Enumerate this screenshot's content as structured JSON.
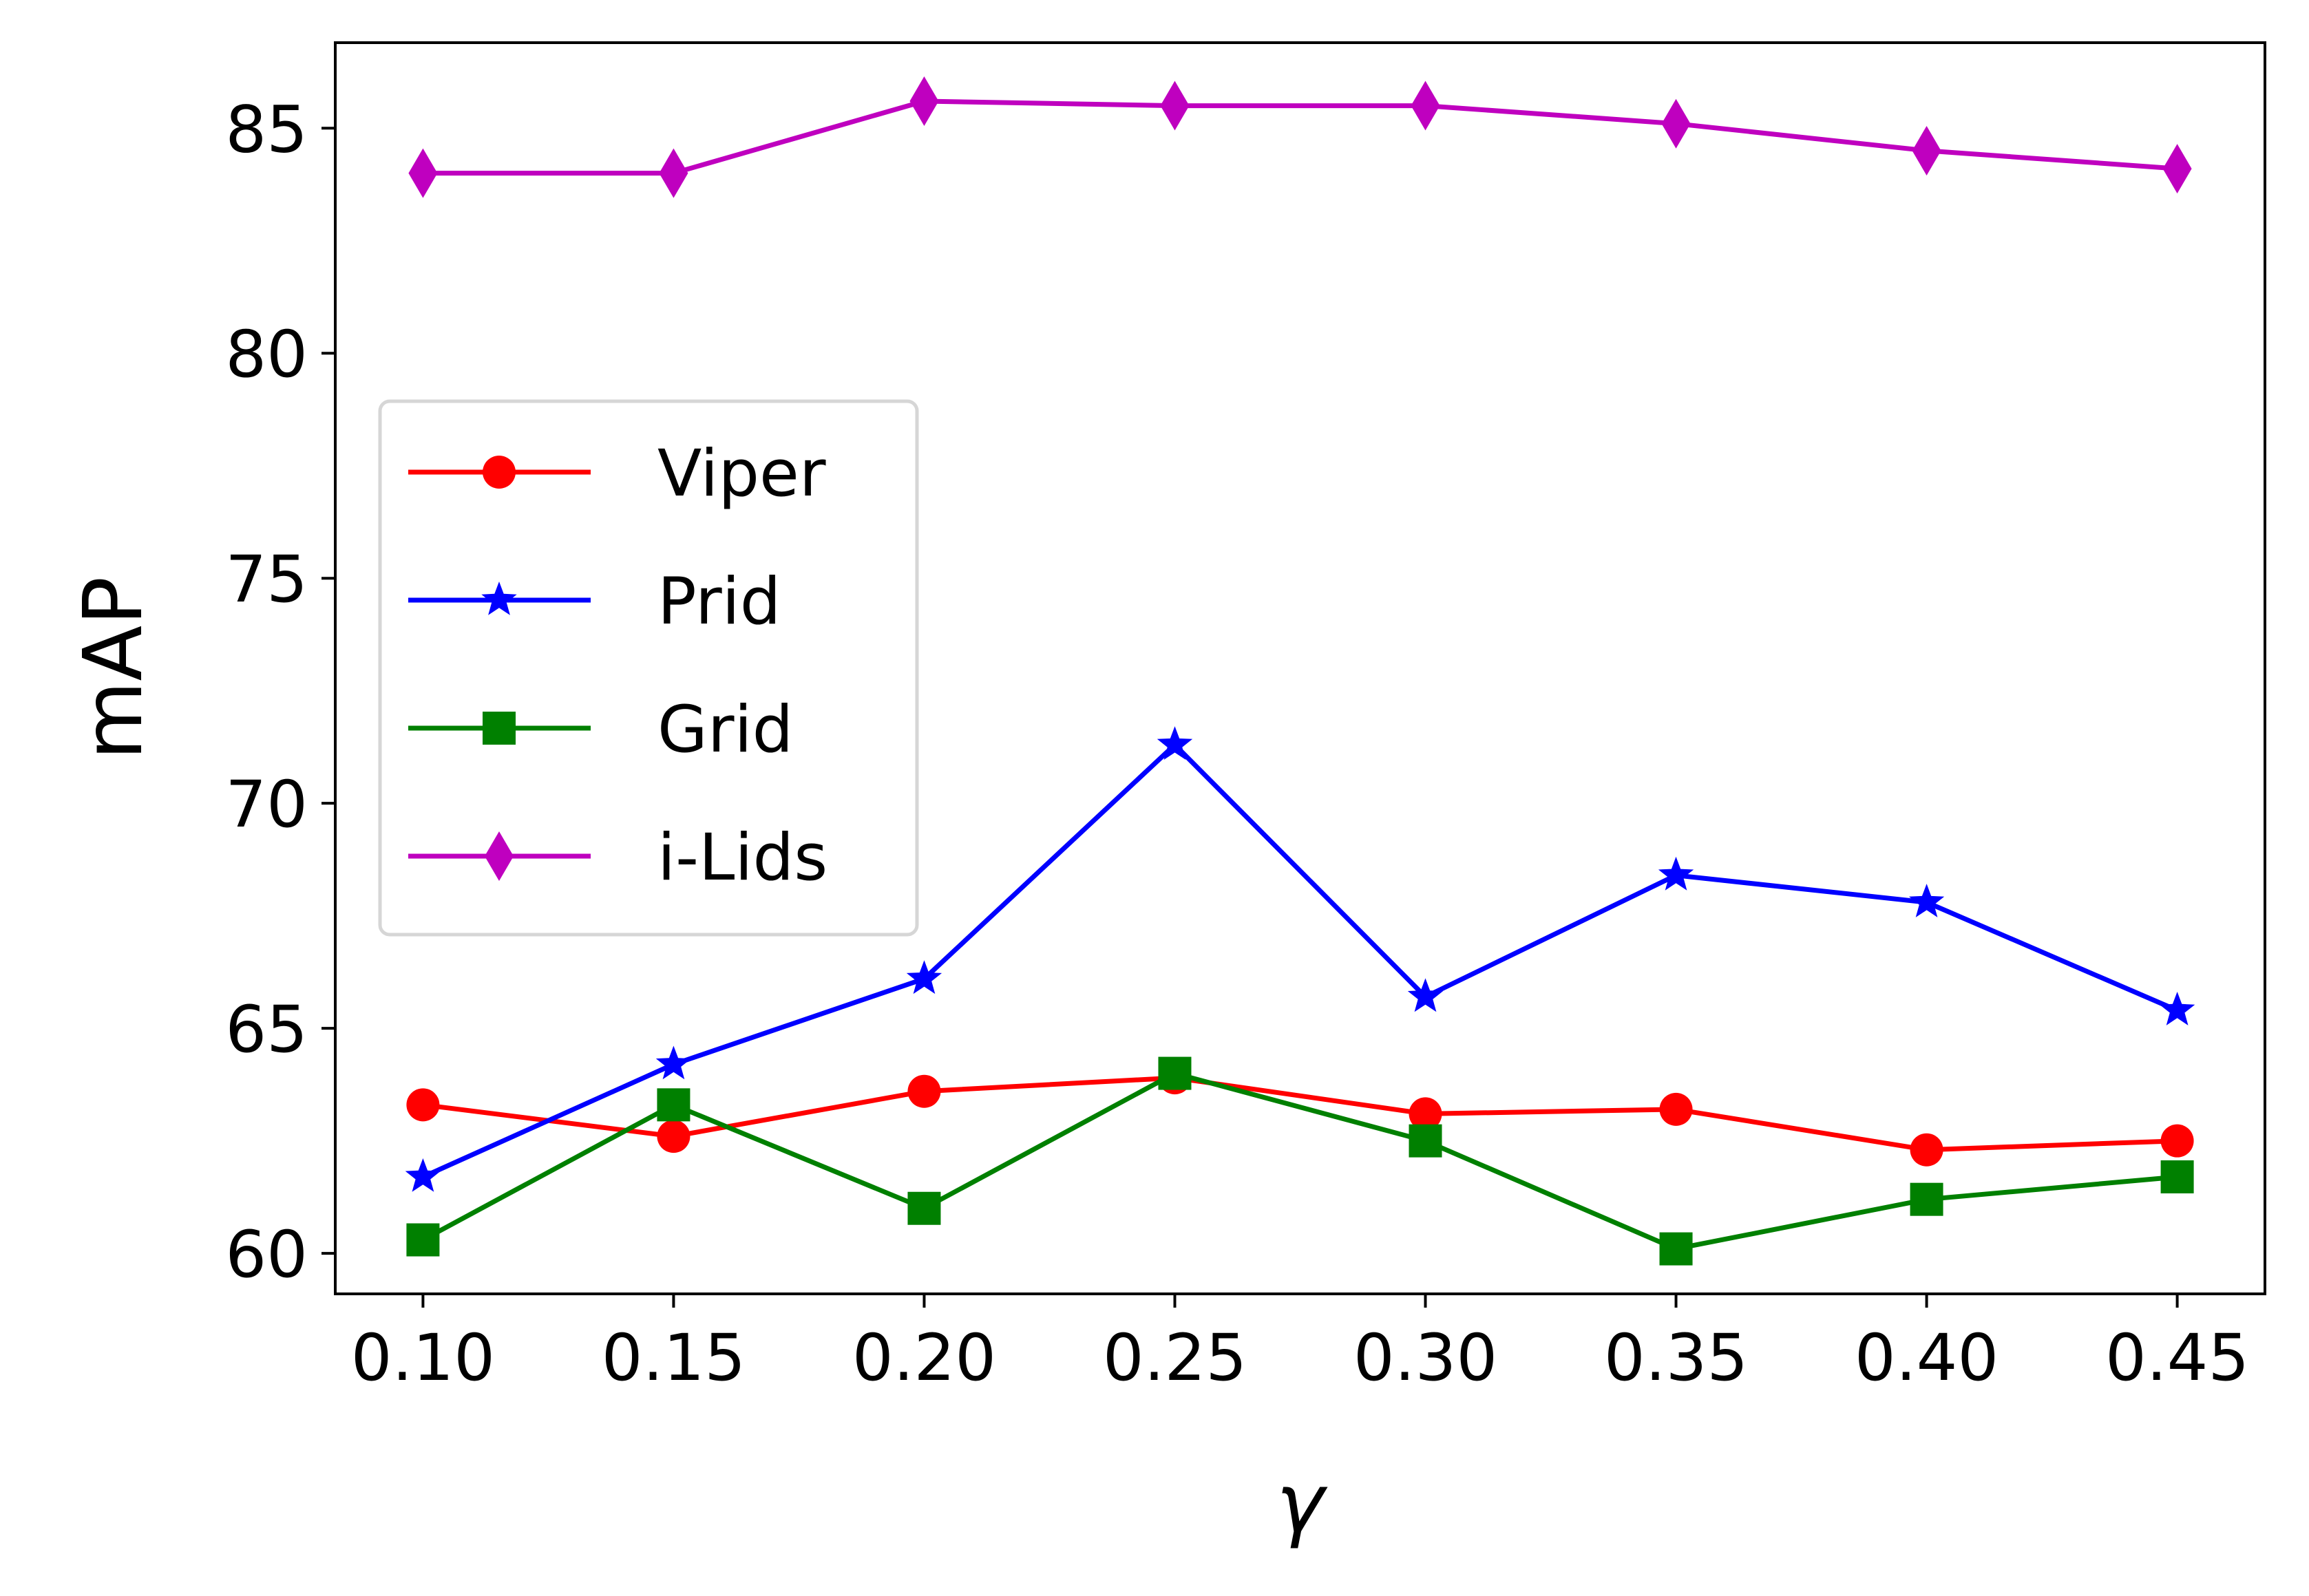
{
  "chart_data": {
    "type": "line",
    "title": "",
    "xlabel": "γ",
    "ylabel": "mAP",
    "x": [
      0.1,
      0.15,
      0.2,
      0.25,
      0.3,
      0.35,
      0.4,
      0.45
    ],
    "x_tick_labels": [
      "0.10",
      "0.15",
      "0.20",
      "0.25",
      "0.30",
      "0.35",
      "0.40",
      "0.45"
    ],
    "y_ticks": [
      60,
      65,
      70,
      75,
      80,
      85
    ],
    "y_tick_labels": [
      "60",
      "65",
      "70",
      "75",
      "80",
      "85"
    ],
    "xlim": [
      0.0825,
      0.4675
    ],
    "ylim": [
      59.1,
      86.9
    ],
    "grid": false,
    "legend_position": "center-left",
    "series": [
      {
        "name": "Viper",
        "color": "#ff0000",
        "marker": "circle",
        "values": [
          63.3,
          62.6,
          63.6,
          63.9,
          63.1,
          63.2,
          62.3,
          62.5
        ]
      },
      {
        "name": "Prid",
        "color": "#0000ff",
        "marker": "star",
        "values": [
          61.7,
          64.2,
          66.1,
          71.3,
          65.7,
          68.4,
          67.8,
          65.4
        ]
      },
      {
        "name": "Grid",
        "color": "#008000",
        "marker": "square",
        "values": [
          60.3,
          63.3,
          61.0,
          64.0,
          62.5,
          60.1,
          61.2,
          61.7
        ]
      },
      {
        "name": "i-Lids",
        "color": "#bf00bf",
        "marker": "thin-diamond",
        "values": [
          84.0,
          84.0,
          85.6,
          85.5,
          85.5,
          85.1,
          84.5,
          84.1
        ]
      }
    ]
  }
}
